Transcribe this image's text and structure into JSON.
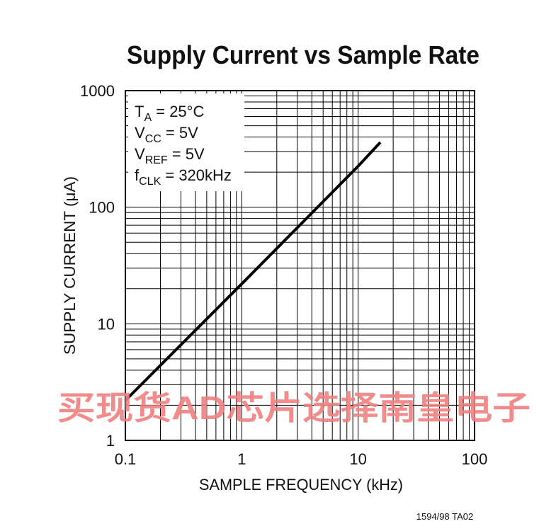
{
  "chart_data": {
    "type": "line",
    "title": "Supply Current vs Sample Rate",
    "x_label": "SAMPLE FREQUENCY (kHz)",
    "y_label": "SUPPLY CURRENT (μA)",
    "log_x": true,
    "log_y": true,
    "grid": true,
    "xlim": [
      0.1,
      100
    ],
    "ylim": [
      1,
      1000
    ],
    "xticks": [
      0.1,
      1,
      10,
      100
    ],
    "yticks": [
      1,
      10,
      100,
      1000
    ],
    "x_minor_ticks": [
      0.2,
      0.3,
      0.4,
      0.5,
      0.6,
      0.7,
      0.8,
      0.9,
      2,
      3,
      4,
      5,
      6,
      7,
      8,
      9,
      20,
      30,
      40,
      50,
      60,
      70,
      80,
      90
    ],
    "y_minor_ticks": [
      2,
      3,
      4,
      5,
      6,
      7,
      8,
      9,
      20,
      30,
      40,
      50,
      60,
      70,
      80,
      90,
      200,
      300,
      400,
      500,
      600,
      700,
      800,
      900
    ],
    "series": [
      {
        "color": "#000000",
        "x": [
          0.1,
          1,
          10,
          15.5
        ],
        "values": [
          2.2,
          22,
          225,
          360
        ]
      }
    ],
    "annotations": [
      {
        "text": "T",
        "sub": "A",
        "rest": " = 25°C"
      },
      {
        "text": "V",
        "sub": "CC",
        "rest": " = 5V"
      },
      {
        "text": "V",
        "sub": "REF",
        "rest": " = 5V"
      },
      {
        "text": "f",
        "sub": "CLK",
        "rest": " = 320kHz"
      }
    ],
    "watermark": "买现货AD芯片选择南皇电子",
    "footnote": "1594/98 TA02"
  }
}
